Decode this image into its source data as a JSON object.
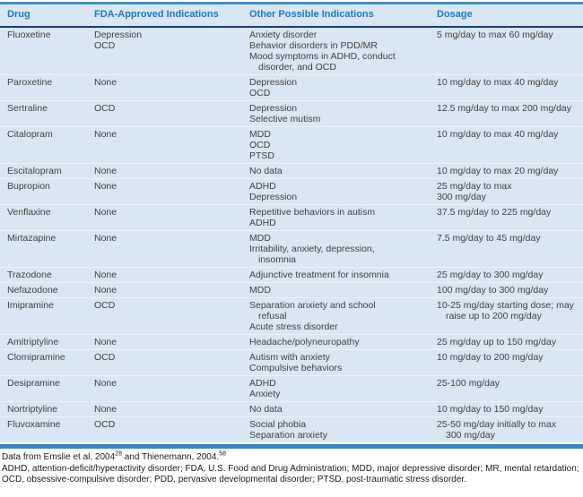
{
  "colors": {
    "table_bg": "#d9e6f3",
    "header_text": "#1b7bc0",
    "top_rule": "#4190ca",
    "header_rule": "#1c3e72",
    "bottom_bar": "#2d87c3"
  },
  "table": {
    "headers": [
      "Drug",
      "FDA-Approved Indications",
      "Other Possible Indications",
      "Dosage"
    ],
    "rows": [
      {
        "drug": "Fluoxetine",
        "fda": [
          {
            "t": "Depression"
          },
          {
            "t": "OCD"
          }
        ],
        "other": [
          {
            "t": "Anxiety disorder"
          },
          {
            "t": "Behavior disorders in PDD/MR"
          },
          {
            "t": "Mood symptoms in ADHD, conduct"
          },
          {
            "t": "disorder, and OCD",
            "ind": 1
          }
        ],
        "dosage": [
          {
            "t": "5 mg/day to max 60 mg/day"
          }
        ]
      },
      {
        "drug": "Paroxetine",
        "fda": [
          {
            "t": "None"
          }
        ],
        "other": [
          {
            "t": "Depression"
          },
          {
            "t": "OCD"
          }
        ],
        "dosage": [
          {
            "t": "10 mg/day to max 40 mg/day"
          }
        ]
      },
      {
        "drug": "Sertraline",
        "fda": [
          {
            "t": "OCD"
          }
        ],
        "other": [
          {
            "t": "Depression"
          },
          {
            "t": "Selective mutism"
          }
        ],
        "dosage": [
          {
            "t": "12.5 mg/day to max 200 mg/day"
          }
        ]
      },
      {
        "drug": "Citalopram",
        "fda": [
          {
            "t": "None"
          }
        ],
        "other": [
          {
            "t": "MDD"
          },
          {
            "t": "OCD"
          },
          {
            "t": "PTSD"
          }
        ],
        "dosage": [
          {
            "t": "10 mg/day to max 40 mg/day"
          }
        ]
      },
      {
        "drug": "Escitalopram",
        "fda": [
          {
            "t": "None"
          }
        ],
        "other": [
          {
            "t": "No data"
          }
        ],
        "dosage": [
          {
            "t": "10 mg/day to max 20 mg/day"
          }
        ]
      },
      {
        "drug": "Bupropion",
        "fda": [
          {
            "t": "None"
          }
        ],
        "other": [
          {
            "t": "ADHD"
          },
          {
            "t": "Depression"
          }
        ],
        "dosage": [
          {
            "t": "25 mg/day to max"
          },
          {
            "t": "300 mg/day"
          }
        ]
      },
      {
        "drug": "Venflaxine",
        "fda": [
          {
            "t": "None"
          }
        ],
        "other": [
          {
            "t": "Repetitive behaviors in autism"
          },
          {
            "t": "ADHD"
          }
        ],
        "dosage": [
          {
            "t": "37.5 mg/day to 225 mg/day"
          }
        ]
      },
      {
        "drug": "Mirtazapine",
        "fda": [
          {
            "t": "None"
          }
        ],
        "other": [
          {
            "t": "MDD"
          },
          {
            "t": "Irritability, anxiety, depression,"
          },
          {
            "t": "insomnia",
            "ind": 1
          }
        ],
        "dosage": [
          {
            "t": "7.5 mg/day to 45 mg/day"
          }
        ]
      },
      {
        "drug": "Trazodone",
        "fda": [
          {
            "t": "None"
          }
        ],
        "other": [
          {
            "t": "Adjunctive treatment for insomnia"
          }
        ],
        "dosage": [
          {
            "t": "25 mg/day to 300 mg/day"
          }
        ]
      },
      {
        "drug": "Nefazodone",
        "fda": [
          {
            "t": "None"
          }
        ],
        "other": [
          {
            "t": "MDD"
          }
        ],
        "dosage": [
          {
            "t": "100 mg/day to 300 mg/day"
          }
        ]
      },
      {
        "drug": "Imipramine",
        "fda": [
          {
            "t": "OCD"
          }
        ],
        "other": [
          {
            "t": "Separation anxiety and school"
          },
          {
            "t": "refusal",
            "ind": 1
          },
          {
            "t": "Acute stress disorder"
          }
        ],
        "dosage": [
          {
            "t": "10-25 mg/day starting dose; may"
          },
          {
            "t": "raise up to 200 mg/day",
            "ind": 1
          }
        ]
      },
      {
        "drug": "Amitriptyline",
        "fda": [
          {
            "t": "None"
          }
        ],
        "other": [
          {
            "t": "Headache/polyneuropathy"
          }
        ],
        "dosage": [
          {
            "t": "25 mg/day up to 150 mg/day"
          }
        ]
      },
      {
        "drug": "Clomipramine",
        "fda": [
          {
            "t": "OCD"
          }
        ],
        "other": [
          {
            "t": "Autism with anxiety"
          },
          {
            "t": "Compulsive behaviors"
          }
        ],
        "dosage": [
          {
            "t": "10 mg/day to 200 mg/day"
          }
        ]
      },
      {
        "drug": "Desipramine",
        "fda": [
          {
            "t": "None"
          }
        ],
        "other": [
          {
            "t": "ADHD"
          },
          {
            "t": "Anxiety"
          }
        ],
        "dosage": [
          {
            "t": "25-100 mg/day"
          }
        ]
      },
      {
        "drug": "Nortriptyline",
        "fda": [
          {
            "t": "None"
          }
        ],
        "other": [
          {
            "t": "No data"
          }
        ],
        "dosage": [
          {
            "t": "10 mg/day to 150 mg/day"
          }
        ]
      },
      {
        "drug": "Fluvoxamine",
        "fda": [
          {
            "t": "OCD"
          }
        ],
        "other": [
          {
            "t": "Social phobia"
          },
          {
            "t": "Separation anxiety"
          }
        ],
        "dosage": [
          {
            "t": "25-50 mg/day initially to max"
          },
          {
            "t": "300 mg/day",
            "ind": 1
          }
        ]
      }
    ]
  },
  "footnotes": {
    "source_prefix": "Data from Emslie et al, 2004",
    "source_sup1": "28",
    "source_middle": " and Thienemann, 2004.",
    "source_sup2": "58",
    "abbreviations": [
      "ADHD, attention-deficit/hyperactivity disorder; FDA, U.S. Food and Drug Administration; MDD, major depressive disorder; MR, mental retardation;",
      "OCD, obsessive-compulsive disorder; PDD, pervasive developmental disorder; PTSD, post-traumatic stress disorder."
    ]
  }
}
